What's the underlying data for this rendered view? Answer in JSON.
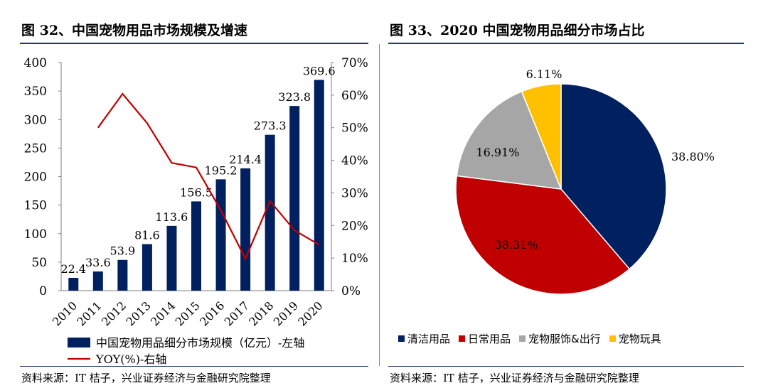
{
  "left": {
    "title": "图 32、中国宠物用品市场规模及增速",
    "source": "资料来源：IT 桔子，兴业证券经济与金融研究院整理"
  },
  "right": {
    "title": "图 33、2020 中国宠物用品细分市场占比",
    "source": "资料来源：IT 桔子，兴业证券经济与金融研究院整理"
  },
  "colors": {
    "navy": "#002060",
    "red": "#c00000",
    "gray": "#a6a6a6",
    "gold": "#ffc000",
    "rule": "#1f3864"
  },
  "chart_data": [
    {
      "type": "bar+line",
      "categories": [
        "2010",
        "2011",
        "2012",
        "2013",
        "2014",
        "2015",
        "2016",
        "2017",
        "2018",
        "2019",
        "2020"
      ],
      "series": [
        {
          "name": "中国宠物用品细分市场规模（亿元）-左轴",
          "type": "bar",
          "axis": "left",
          "values": [
            22.4,
            33.6,
            53.9,
            81.6,
            113.6,
            156.5,
            195.2,
            214.4,
            273.3,
            323.8,
            369.6
          ],
          "labels": [
            "22.4",
            "33.6",
            "53.9",
            "81.6",
            "113.6",
            "156.5",
            "195.2",
            "214.4",
            "273.3",
            "323.8",
            "369.6"
          ]
        },
        {
          "name": "YOY(%)-右轴",
          "type": "line",
          "axis": "right",
          "values": [
            null,
            50,
            60.4,
            51.4,
            39.2,
            37.8,
            24.7,
            9.8,
            27.5,
            18.5,
            14.1
          ]
        }
      ],
      "ylim_left": [
        0,
        400
      ],
      "yticks_left": [
        "0",
        "50",
        "100",
        "150",
        "200",
        "250",
        "300",
        "350",
        "400"
      ],
      "ylim_right": [
        0,
        70
      ],
      "yticks_right": [
        "0%",
        "10%",
        "20%",
        "30%",
        "40%",
        "50%",
        "60%",
        "70%"
      ],
      "legend": "bottom"
    },
    {
      "type": "pie",
      "slices": [
        {
          "name": "清洁用品",
          "value": 38.8,
          "label": "38.80%"
        },
        {
          "name": "日常用品",
          "value": 38.31,
          "label": "38.31%"
        },
        {
          "name": "宠物服饰&出行",
          "value": 16.91,
          "label": "16.91%"
        },
        {
          "name": "宠物玩具",
          "value": 6.11,
          "label": "6.11%"
        }
      ],
      "legend": "bottom"
    }
  ]
}
